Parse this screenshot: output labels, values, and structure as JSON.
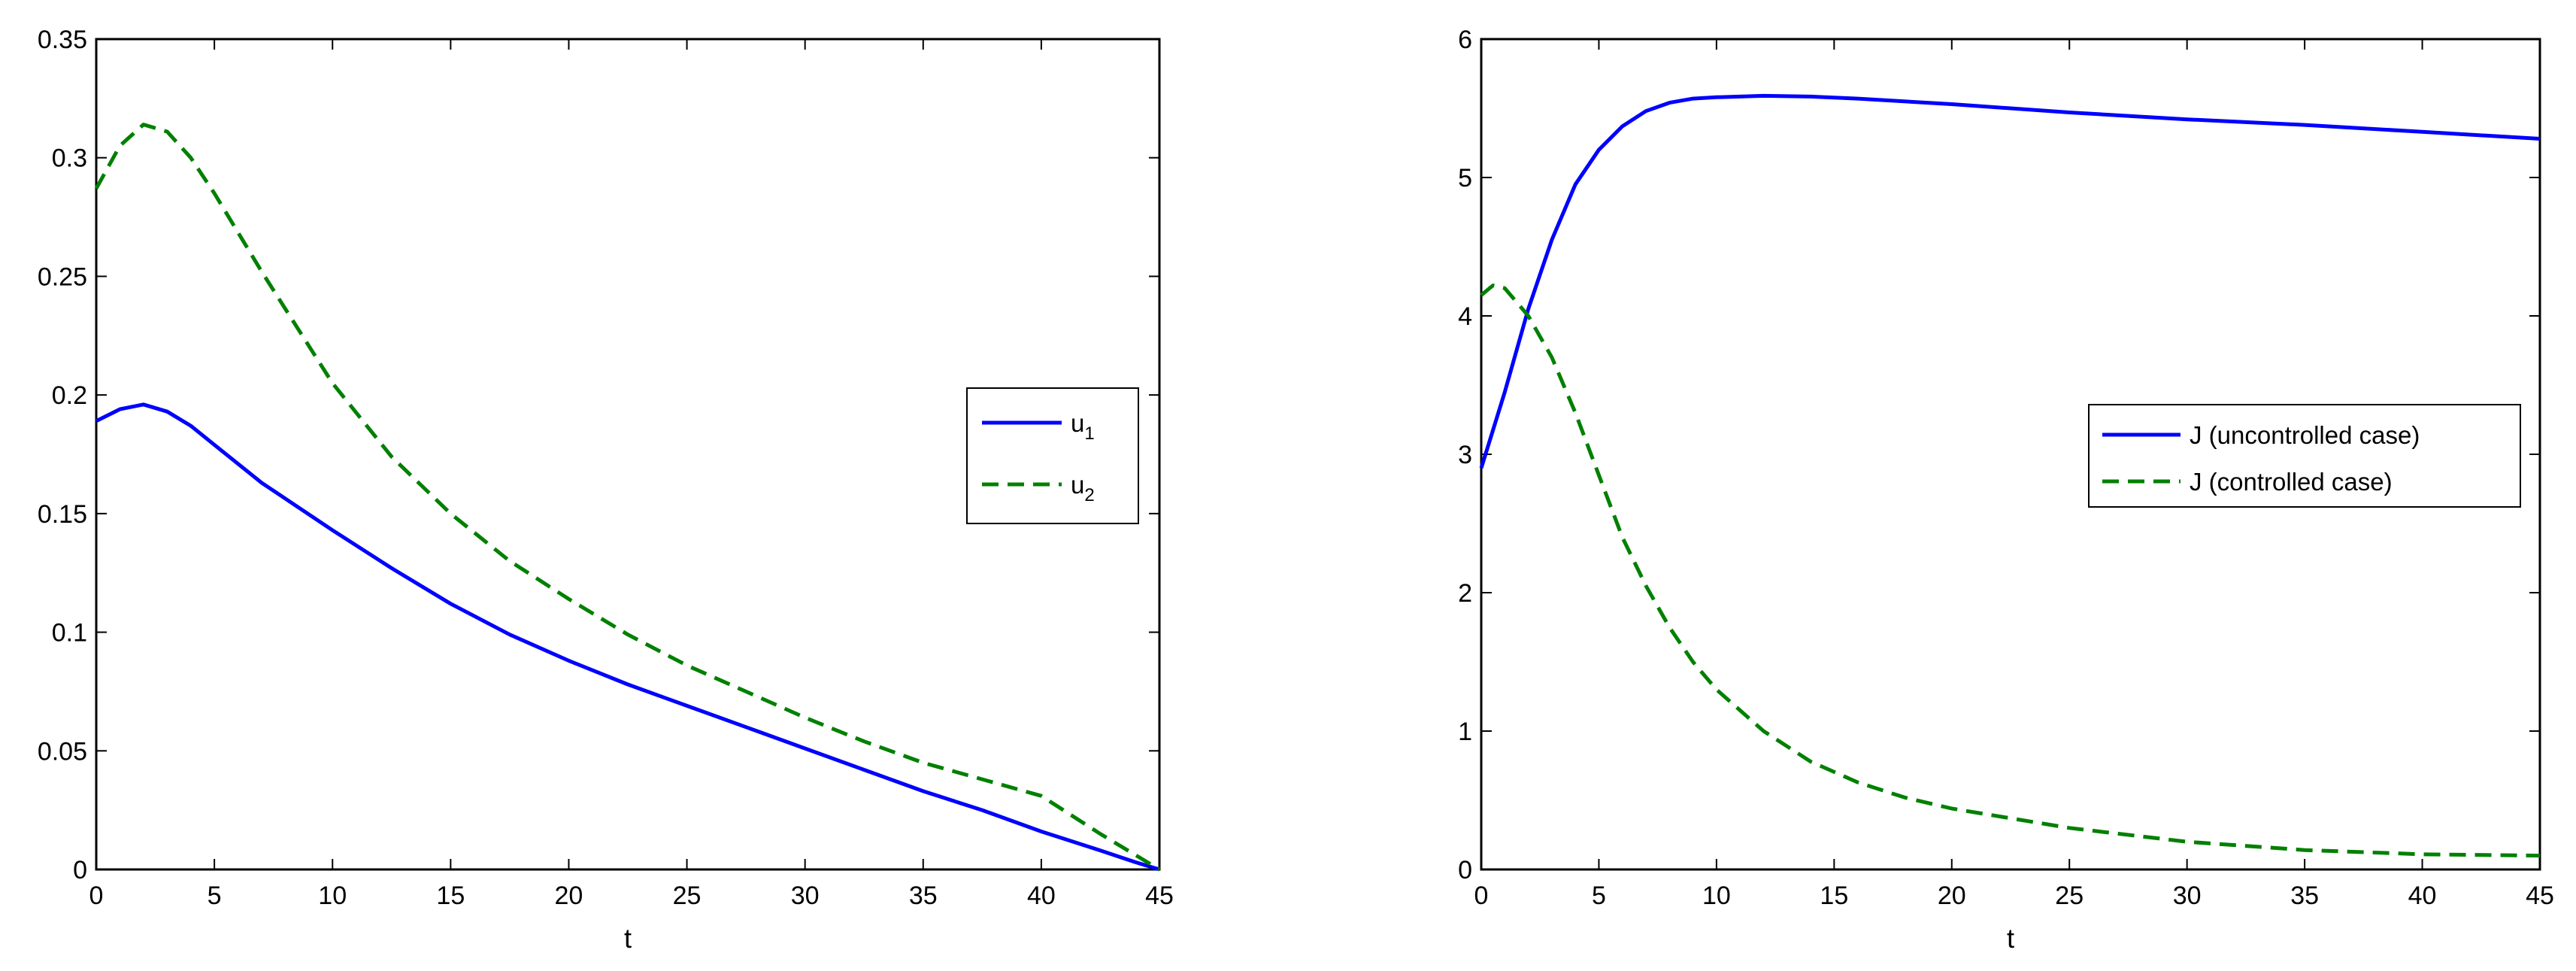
{
  "colors": {
    "series1": "#0000ff",
    "series2": "#008000",
    "axes": "#000000",
    "background": "#ffffff"
  },
  "chart_data": [
    {
      "type": "line",
      "title": "",
      "xlabel": "t",
      "ylabel": "",
      "xlim": [
        0,
        45
      ],
      "ylim": [
        0,
        0.35
      ],
      "xticks": [
        0,
        5,
        10,
        15,
        20,
        25,
        30,
        35,
        40,
        45
      ],
      "xtick_labels": [
        "0",
        "5",
        "10",
        "15",
        "20",
        "25",
        "30",
        "35",
        "40",
        "45"
      ],
      "yticks": [
        0,
        0.05,
        0.1,
        0.15,
        0.2,
        0.25,
        0.3,
        0.35
      ],
      "ytick_labels": [
        "0",
        "0.05",
        "0.1",
        "0.15",
        "0.2",
        "0.25",
        "0.3",
        "0.35"
      ],
      "grid": false,
      "legend_position": "right",
      "series": [
        {
          "name": "u1",
          "label_main": "u",
          "label_sub": "1",
          "style": "solid",
          "color": "#0000ff",
          "x": [
            0,
            1,
            2,
            3,
            4,
            5,
            7,
            10,
            12.5,
            15,
            17.5,
            20,
            22.5,
            25,
            27.5,
            30,
            32.5,
            35,
            37.5,
            40,
            42.5,
            44,
            45
          ],
          "y": [
            0.189,
            0.194,
            0.196,
            0.193,
            0.187,
            0.179,
            0.163,
            0.143,
            0.127,
            0.112,
            0.099,
            0.088,
            0.078,
            0.069,
            0.06,
            0.051,
            0.042,
            0.033,
            0.025,
            0.016,
            0.008,
            0.003,
            0.0
          ]
        },
        {
          "name": "u2",
          "label_main": "u",
          "label_sub": "2",
          "style": "dashed",
          "color": "#008000",
          "x": [
            0,
            1,
            2,
            3,
            4,
            5,
            7,
            10,
            12.5,
            15,
            17.5,
            20,
            22.5,
            25,
            27.5,
            30,
            32.5,
            35,
            37.5,
            40,
            42.5,
            44,
            45
          ],
          "y": [
            0.287,
            0.305,
            0.314,
            0.311,
            0.3,
            0.285,
            0.252,
            0.205,
            0.174,
            0.15,
            0.13,
            0.114,
            0.099,
            0.086,
            0.075,
            0.064,
            0.054,
            0.045,
            0.038,
            0.031,
            0.015,
            0.006,
            0.0
          ]
        }
      ]
    },
    {
      "type": "line",
      "title": "",
      "xlabel": "t",
      "ylabel": "",
      "xlim": [
        0,
        45
      ],
      "ylim": [
        0,
        6
      ],
      "xticks": [
        0,
        5,
        10,
        15,
        20,
        25,
        30,
        35,
        40,
        45
      ],
      "xtick_labels": [
        "0",
        "5",
        "10",
        "15",
        "20",
        "25",
        "30",
        "35",
        "40",
        "45"
      ],
      "yticks": [
        0,
        1,
        2,
        3,
        4,
        5,
        6
      ],
      "ytick_labels": [
        "0",
        "1",
        "2",
        "3",
        "4",
        "5",
        "6"
      ],
      "grid": false,
      "legend_position": "right",
      "series": [
        {
          "name": "J (uncontrolled case)",
          "style": "solid",
          "color": "#0000ff",
          "x": [
            0,
            1,
            2,
            3,
            4,
            5,
            6,
            7,
            8,
            9,
            10,
            12,
            14,
            16,
            20,
            25,
            30,
            35,
            40,
            45
          ],
          "y": [
            2.9,
            3.45,
            4.05,
            4.55,
            4.95,
            5.2,
            5.37,
            5.48,
            5.54,
            5.57,
            5.58,
            5.59,
            5.585,
            5.57,
            5.53,
            5.47,
            5.42,
            5.38,
            5.33,
            5.28
          ]
        },
        {
          "name": "J (controlled case)",
          "style": "dashed",
          "color": "#008000",
          "x": [
            0,
            0.5,
            1,
            2,
            3,
            4,
            5,
            6,
            7,
            8,
            9,
            10,
            12,
            14,
            16,
            18,
            20,
            25,
            30,
            35,
            40,
            45
          ],
          "y": [
            4.15,
            4.22,
            4.2,
            4.0,
            3.7,
            3.3,
            2.85,
            2.4,
            2.05,
            1.75,
            1.5,
            1.3,
            1.0,
            0.78,
            0.63,
            0.52,
            0.44,
            0.3,
            0.2,
            0.14,
            0.11,
            0.1
          ]
        }
      ]
    }
  ]
}
